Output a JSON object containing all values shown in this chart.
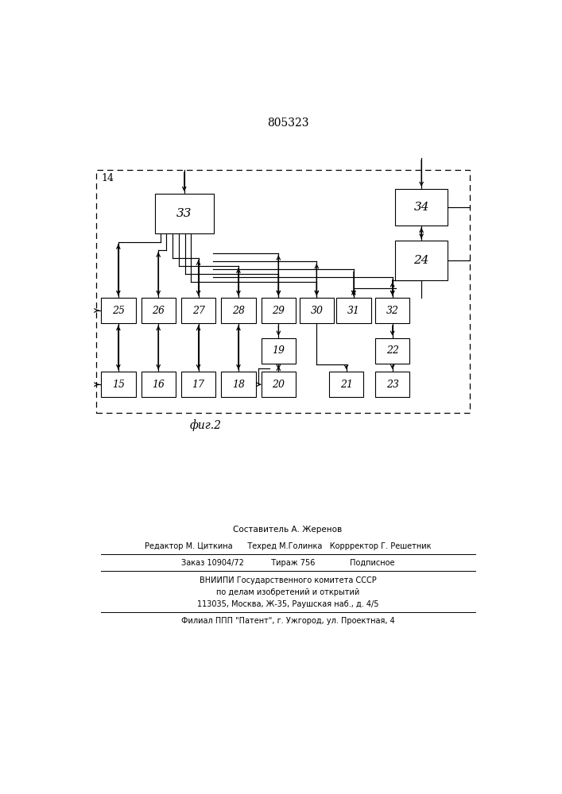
{
  "title": "805323",
  "fig_label": "фиг.2",
  "bg_color": "#ffffff",
  "box_color": "#ffffff",
  "box_edge_color": "#000000",
  "footer_lines": [
    "Составитель А. Жеренов",
    "Редактор М. Циткина      Техред М.Голинка   Коррректор Г. Решетник",
    "Заказ 10904/72           Тираж 756              Подписное",
    "ВНИИПИ Государственного комитета СССР",
    "по делам изобретений и открытий",
    "113035, Москва, Ж-35, Раушская наб., д. 4/5",
    "Филиал ППП \"Патент\", г. Ужгород, ул. Проектная, 4"
  ]
}
